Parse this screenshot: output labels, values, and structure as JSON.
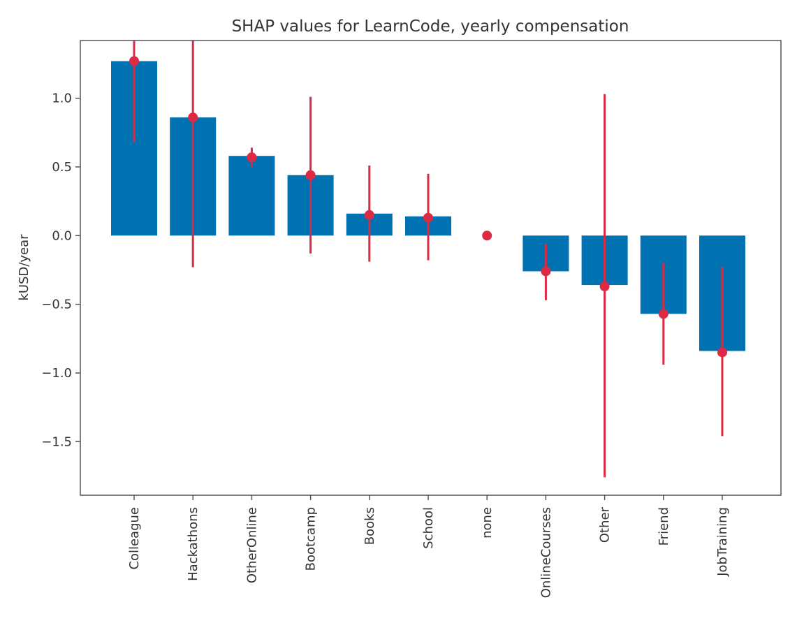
{
  "chart_data": {
    "type": "bar",
    "title": "SHAP values for LearnCode, yearly compensation",
    "xlabel": "",
    "ylabel": "kUSD/year",
    "categories": [
      "Colleague",
      "Hackathons",
      "OtherOnline",
      "Bootcamp",
      "Books",
      "School",
      "none",
      "OnlineCourses",
      "Other",
      "Friend",
      "JobTraining"
    ],
    "values": [
      1.27,
      0.86,
      0.58,
      0.44,
      0.16,
      0.14,
      0.0,
      -0.26,
      -0.36,
      -0.57,
      -0.84
    ],
    "point_values": [
      1.27,
      0.86,
      0.57,
      0.44,
      0.15,
      0.13,
      0.0,
      -0.26,
      -0.37,
      -0.57,
      -0.85
    ],
    "error_low": [
      0.68,
      -0.23,
      0.5,
      -0.13,
      -0.19,
      -0.18,
      0.0,
      -0.47,
      -1.76,
      -0.94,
      -1.46
    ],
    "error_high": [
      1.42,
      1.42,
      0.64,
      1.01,
      0.51,
      0.45,
      0.0,
      -0.06,
      1.03,
      -0.2,
      -0.23
    ],
    "ylim": [
      -1.89,
      1.42
    ],
    "yticks": [
      1.0,
      0.5,
      0.0,
      -0.5,
      -1.0,
      -1.5
    ],
    "ytick_labels": [
      "1.0",
      "0.5",
      "0.0",
      "−0.5",
      "−1.0",
      "−1.5"
    ],
    "grid": false,
    "legend": "none",
    "colors": {
      "bar": "#0072b2",
      "point": "#dc2a45",
      "axis": "#555555",
      "text": "#333333"
    }
  }
}
